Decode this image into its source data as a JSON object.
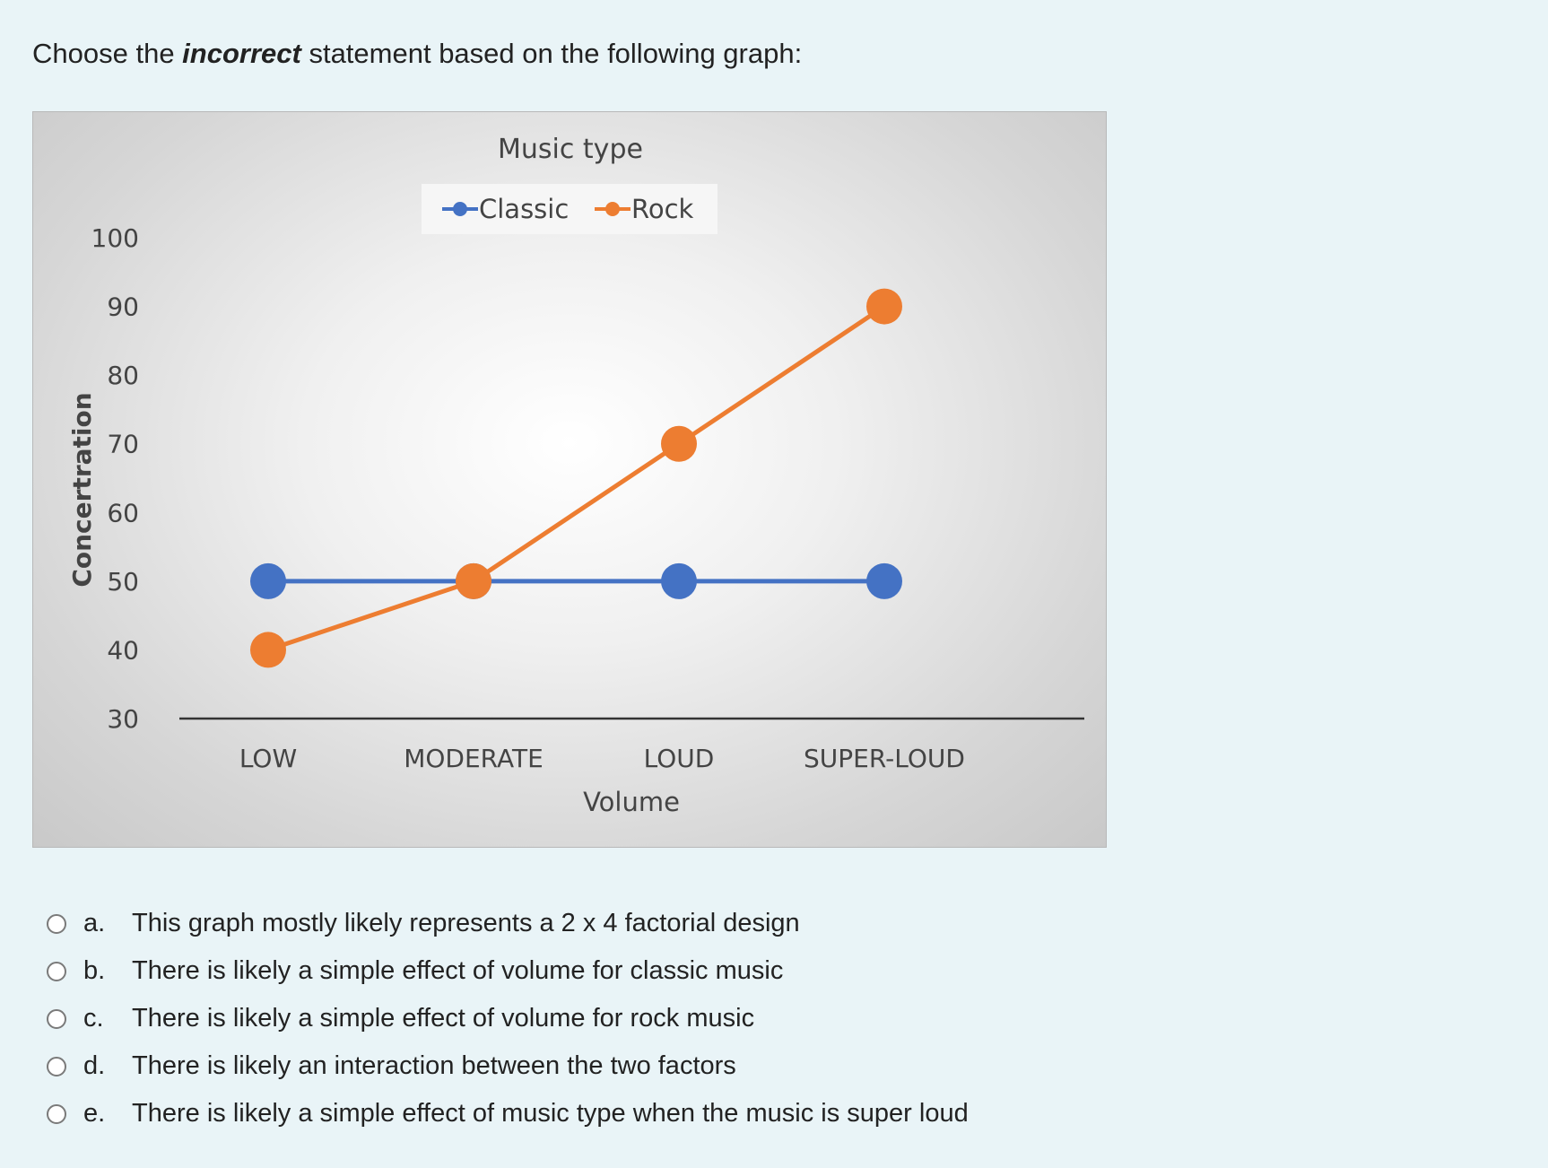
{
  "question": {
    "prefix": "Choose the ",
    "emphasis": "incorrect",
    "suffix": " statement based on the following graph:"
  },
  "chart_data": {
    "type": "line",
    "title": "Music type",
    "xlabel": "Volume",
    "ylabel": "Concertration",
    "categories": [
      "LOW",
      "MODERATE",
      "LOUD",
      "SUPER-LOUD"
    ],
    "ylim": [
      30,
      100
    ],
    "yticks": [
      30,
      40,
      50,
      60,
      70,
      80,
      90,
      100
    ],
    "grid": false,
    "legend_position": "top-center",
    "series": [
      {
        "name": "Classic",
        "color": "#4472c4",
        "values": [
          50,
          50,
          50,
          50
        ]
      },
      {
        "name": "Rock",
        "color": "#ed7d31",
        "values": [
          40,
          50,
          70,
          90
        ]
      }
    ]
  },
  "options": [
    {
      "letter": "a.",
      "text": "This graph mostly likely represents a 2 x 4 factorial design"
    },
    {
      "letter": "b.",
      "text": "There is likely a simple effect of volume for classic music"
    },
    {
      "letter": "c.",
      "text": "There is likely a simple effect of volume for rock music"
    },
    {
      "letter": "d.",
      "text": "There is likely an interaction between the two factors"
    },
    {
      "letter": "e.",
      "text": "There is likely a simple effect of music type when the music is super loud"
    }
  ]
}
